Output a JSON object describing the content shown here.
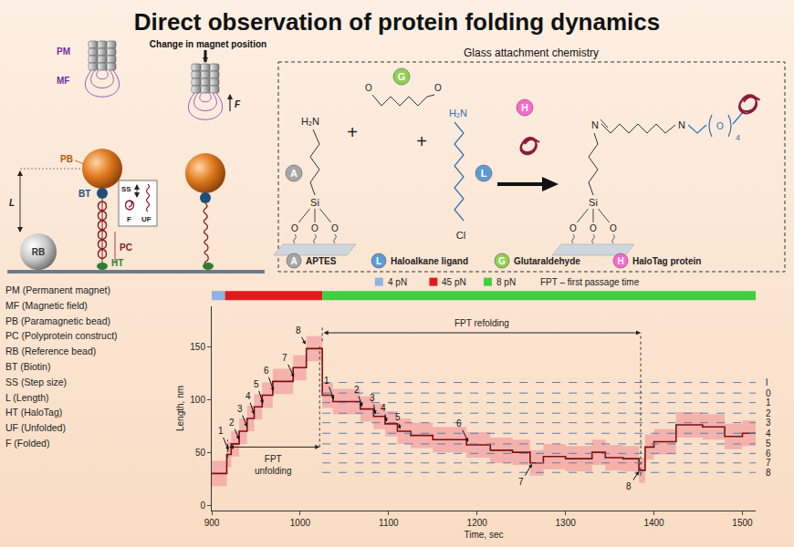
{
  "title": "Direct observation of protein folding dynamics",
  "setup_diagram": {
    "magnet_move": "Change in magnet position",
    "force": "F",
    "labels": {
      "pm": "PM",
      "mf": "MF",
      "pb": "PB",
      "bt": "BT",
      "l": "L",
      "ss": "SS",
      "f": "F",
      "uf": "UF",
      "pc": "PC",
      "rb": "RB",
      "ht": "HT"
    }
  },
  "chemistry": {
    "title": "Glass attachment chemistry",
    "reagents": [
      {
        "key": "A",
        "name": "APTES",
        "color": "#a6a6a6"
      },
      {
        "key": "L",
        "name": "Haloalkane ligand",
        "color": "#5b9bd5"
      },
      {
        "key": "G",
        "name": "Glutaraldehyde",
        "color": "#92d050"
      },
      {
        "key": "H",
        "name": "HaloTag protein",
        "color": "#ff66cc"
      }
    ],
    "atoms": {
      "silicon": "Si",
      "oxygen": "O",
      "amine": "H₂N",
      "chlorine": "Cl",
      "nitrogen": "N",
      "repeat": "4",
      "plus": "+"
    }
  },
  "abbreviations": [
    "PM (Permanent magnet)",
    "MF (Magnetic field)",
    "PB (Paramagnetic bead)",
    "PC (Polyprotein construct)",
    "RB (Reference bead)",
    "BT (Biotin)",
    "SS (Step size)",
    "L (Length)",
    "HT (HaloTag)",
    "UF (Unfolded)",
    "F (Folded)"
  ],
  "chart_data": {
    "type": "line",
    "x_label": "Time, sec",
    "y_label": "Length, nm",
    "x": [
      900,
      917,
      922,
      931,
      940,
      948,
      957,
      969,
      992,
      1007,
      1025,
      1037,
      1068,
      1083,
      1096,
      1110,
      1125,
      1150,
      1188,
      1215,
      1240,
      1260,
      1275,
      1300,
      1330,
      1345,
      1365,
      1383,
      1390,
      1400,
      1425,
      1455,
      1480,
      1500,
      1515
    ],
    "values": [
      30,
      48,
      58,
      70,
      82,
      93,
      104,
      117,
      130,
      148,
      104,
      98,
      91,
      84,
      77,
      70,
      66,
      62,
      57,
      52,
      50,
      40,
      46,
      44,
      50,
      45,
      44,
      33,
      55,
      60,
      76,
      74,
      65,
      68,
      68
    ],
    "error": 12,
    "color": "#7a1010",
    "line_style": "step",
    "xlim": [
      900,
      1515
    ],
    "ylim": [
      -5,
      188
    ],
    "xticks": [
      900,
      1000,
      1100,
      1200,
      1300,
      1400,
      1500
    ],
    "yticks": [
      0,
      50,
      100,
      150
    ],
    "grid": false,
    "force_protocol": [
      {
        "label": "4 pN",
        "start": 900,
        "end": 915,
        "color": "#8db3e2"
      },
      {
        "label": "45 pN",
        "start": 915,
        "end": 1025,
        "color": "#e31a1c"
      },
      {
        "label": "8 pN",
        "start": 1025,
        "end": 1515,
        "color": "#3fcf3f"
      }
    ],
    "fpt_note": "FPT – first passage time",
    "levels": {
      "labels": [
        "l",
        "0",
        "1",
        "2",
        "3",
        "4",
        "5",
        "6",
        "7",
        "8"
      ],
      "values": [
        116,
        106,
        97,
        87,
        78,
        68,
        58,
        49,
        40,
        31
      ],
      "start": 1025,
      "end": 1515
    },
    "fpt": [
      {
        "lines": [
          "FPT",
          "unfolding"
        ],
        "start": 918,
        "end": 1022,
        "y": 55,
        "text_y": 38,
        "start_guide": [
          45,
          62
        ],
        "end_guide": [
          55,
          150
        ]
      },
      {
        "lines": [
          "FPT refolding"
        ],
        "start": 1025,
        "end": 1385,
        "y": 163,
        "text_y": 172,
        "start_guide": [
          155,
          170
        ],
        "end_guide": [
          28,
          163
        ]
      }
    ],
    "annotations": [
      {
        "text": "1",
        "x": 919,
        "y": 52,
        "tx": 910,
        "ty": 70
      },
      {
        "text": "2",
        "x": 931,
        "y": 62,
        "tx": 923,
        "ty": 78
      },
      {
        "text": "3",
        "x": 940,
        "y": 74,
        "tx": 932,
        "ty": 91
      },
      {
        "text": "4",
        "x": 948,
        "y": 86,
        "tx": 941,
        "ty": 103
      },
      {
        "text": "5",
        "x": 958,
        "y": 96,
        "tx": 951,
        "ty": 114
      },
      {
        "text": "6",
        "x": 970,
        "y": 108,
        "tx": 962,
        "ty": 127
      },
      {
        "text": "7",
        "x": 993,
        "y": 121,
        "tx": 983,
        "ty": 139
      },
      {
        "text": "8",
        "x": 1006,
        "y": 152,
        "tx": 998,
        "ty": 165
      },
      {
        "text": "1",
        "x": 1038,
        "y": 100,
        "tx": 1030,
        "ty": 118
      },
      {
        "text": "2",
        "x": 1070,
        "y": 93,
        "tx": 1064,
        "ty": 109
      },
      {
        "text": "3",
        "x": 1085,
        "y": 86,
        "tx": 1082,
        "ty": 101
      },
      {
        "text": "4",
        "x": 1098,
        "y": 79,
        "tx": 1094,
        "ty": 92
      },
      {
        "text": "5",
        "x": 1113,
        "y": 72,
        "tx": 1110,
        "ty": 83
      },
      {
        "text": "6",
        "x": 1190,
        "y": 60,
        "tx": 1180,
        "ty": 77
      },
      {
        "text": "7",
        "x": 1262,
        "y": 39,
        "tx": 1250,
        "ty": 22
      },
      {
        "text": "8",
        "x": 1383,
        "y": 32,
        "tx": 1372,
        "ty": 18
      }
    ]
  }
}
